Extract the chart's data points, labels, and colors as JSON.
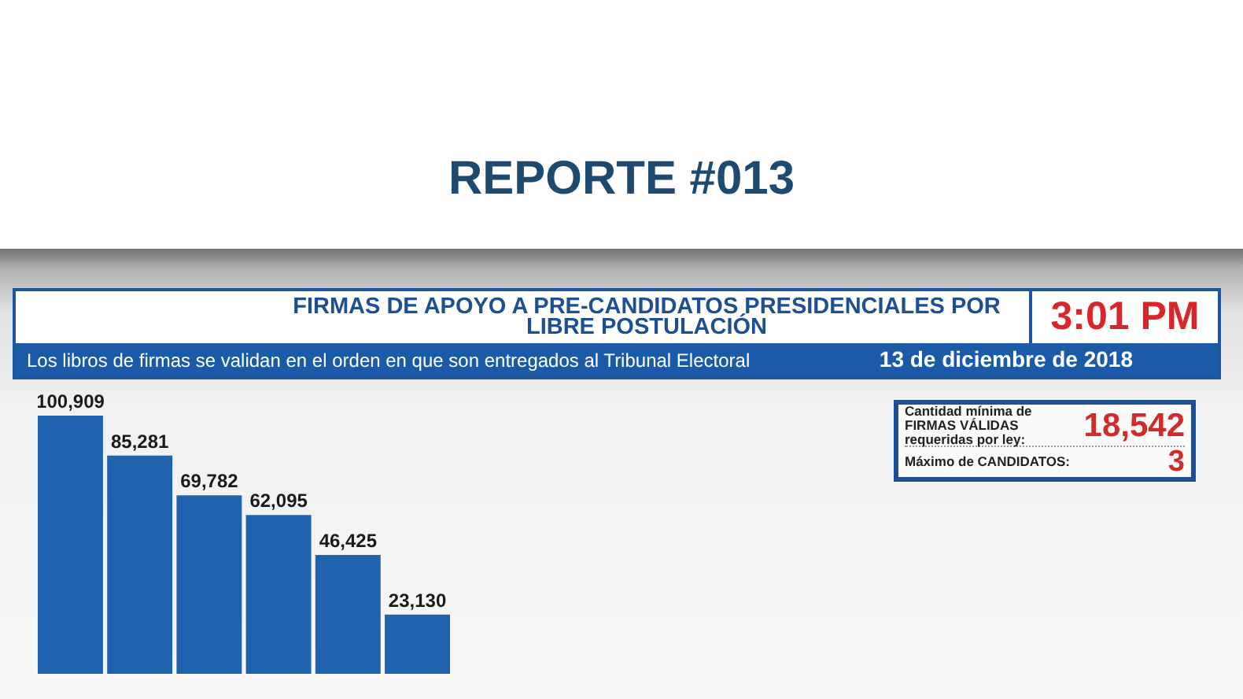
{
  "chart_data": {
    "type": "bar",
    "title": "FIRMAS DE APOYO A PRE-CANDIDATOS PRESIDENCIALES POR LIBRE POSTULACIÓN",
    "subtitle": "Los libros de firmas se validan en el orden en que son entregados al Tribunal Electoral",
    "categories": [
      null,
      null,
      null,
      null,
      null,
      null
    ],
    "values": [
      100909,
      85281,
      69782,
      62095,
      46425,
      23130
    ],
    "value_labels": [
      "100,909",
      "85,281",
      "69,782",
      "62,095",
      "46,425",
      "23,130"
    ],
    "color": "#1f62ad",
    "annotations": [
      "REPORTE #013",
      "3:01 PM",
      "13 de diciembre de 2018",
      "Cantidad mínima de FIRMAS VÁLIDAS requeridas por ley:",
      "18,542",
      "Máximo de CANDIDATOS:",
      "3"
    ]
  }
}
